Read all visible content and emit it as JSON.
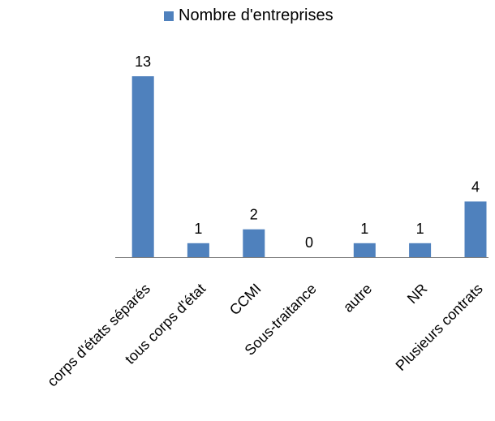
{
  "chart_data": {
    "type": "bar",
    "categories": [
      "corps d'états séparés",
      "tous corps d'état",
      "CCMI",
      "Sous-traitance",
      "autre",
      "NR",
      "Plusieurs contrats"
    ],
    "series": [
      {
        "name": "Nombre d'entreprises",
        "values": [
          13,
          1,
          2,
          0,
          1,
          1,
          4
        ],
        "color": "#4F81BD"
      }
    ],
    "ylim": [
      0,
      13
    ],
    "grid": false,
    "legend_position": "top"
  }
}
